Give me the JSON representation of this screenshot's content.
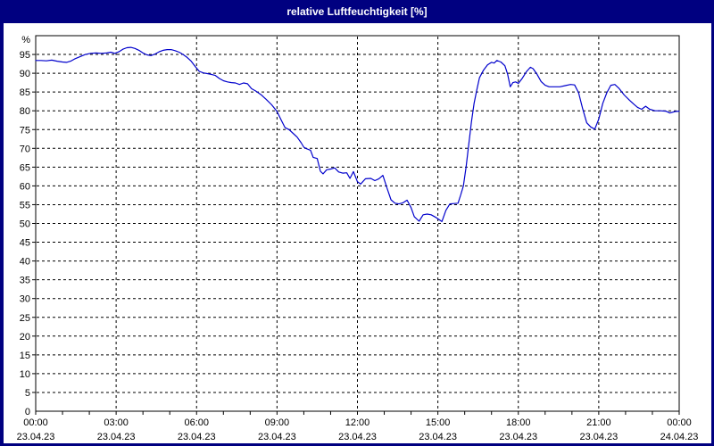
{
  "window": {
    "title": "relative Luftfeuchtigkeit [%]"
  },
  "colors": {
    "title_bar": "#000080",
    "window_border": "#000080",
    "title_text": "#ffffff",
    "plot_background": "#ffffff",
    "plot_line": "#0000cc",
    "grid": "#000000",
    "axis": "#000000",
    "label_text": "#000000"
  },
  "chart_data": {
    "type": "line",
    "title": "relative Luftfeuchtigkeit [%]",
    "ylabel": "%",
    "xlabel": "",
    "ylim": [
      0,
      100
    ],
    "grid": "dashed",
    "legend_position": "none",
    "y_unit_label": "%",
    "ytick_values": [
      0,
      5,
      10,
      15,
      20,
      25,
      30,
      35,
      40,
      45,
      50,
      55,
      60,
      65,
      70,
      75,
      80,
      85,
      90,
      95
    ],
    "ytick_labels": [
      "0",
      "5",
      "10",
      "15",
      "20",
      "25",
      "30",
      "35",
      "40",
      "45",
      "50",
      "55",
      "60",
      "65",
      "70",
      "75",
      "80",
      "85",
      "90",
      "95"
    ],
    "xlim_hours": [
      0,
      24
    ],
    "x_minor_tick_hours": 1,
    "x_major_gridline_hours": [
      3,
      6,
      9,
      12,
      15,
      18,
      21
    ],
    "xticks_major": [
      {
        "hour": 0,
        "time": "00:00",
        "date": "23.04.23"
      },
      {
        "hour": 3,
        "time": "03:00",
        "date": "23.04.23"
      },
      {
        "hour": 6,
        "time": "06:00",
        "date": "23.04.23"
      },
      {
        "hour": 9,
        "time": "09:00",
        "date": "23.04.23"
      },
      {
        "hour": 12,
        "time": "12:00",
        "date": "23.04.23"
      },
      {
        "hour": 15,
        "time": "15:00",
        "date": "23.04.23"
      },
      {
        "hour": 18,
        "time": "18:00",
        "date": "23.04.23"
      },
      {
        "hour": 21,
        "time": "21:00",
        "date": "23.04.23"
      },
      {
        "hour": 24,
        "time": "00:00",
        "date": "24.04.23"
      }
    ],
    "series": [
      {
        "name": "relative Luftfeuchtigkeit",
        "color": "#0000cc",
        "points": [
          [
            0.0,
            93.4
          ],
          [
            0.2,
            93.4
          ],
          [
            0.4,
            93.3
          ],
          [
            0.6,
            93.5
          ],
          [
            0.8,
            93.2
          ],
          [
            1.0,
            93.0
          ],
          [
            1.15,
            92.9
          ],
          [
            1.3,
            93.2
          ],
          [
            1.45,
            93.8
          ],
          [
            1.65,
            94.4
          ],
          [
            1.85,
            95.0
          ],
          [
            2.05,
            95.3
          ],
          [
            2.25,
            95.4
          ],
          [
            2.45,
            95.3
          ],
          [
            2.65,
            95.4
          ],
          [
            2.8,
            95.6
          ],
          [
            2.95,
            95.3
          ],
          [
            3.1,
            95.7
          ],
          [
            3.25,
            96.4
          ],
          [
            3.4,
            96.8
          ],
          [
            3.55,
            96.9
          ],
          [
            3.7,
            96.6
          ],
          [
            3.85,
            96.1
          ],
          [
            4.0,
            95.4
          ],
          [
            4.15,
            94.9
          ],
          [
            4.3,
            94.7
          ],
          [
            4.45,
            95.1
          ],
          [
            4.6,
            95.7
          ],
          [
            4.75,
            96.1
          ],
          [
            4.9,
            96.3
          ],
          [
            5.05,
            96.3
          ],
          [
            5.2,
            96.0
          ],
          [
            5.35,
            95.6
          ],
          [
            5.5,
            95.0
          ],
          [
            5.65,
            94.2
          ],
          [
            5.8,
            93.2
          ],
          [
            5.95,
            91.8
          ],
          [
            6.1,
            90.5
          ],
          [
            6.25,
            90.1
          ],
          [
            6.4,
            89.9
          ],
          [
            6.55,
            89.7
          ],
          [
            6.7,
            89.4
          ],
          [
            6.85,
            88.6
          ],
          [
            7.0,
            88.0
          ],
          [
            7.15,
            87.7
          ],
          [
            7.3,
            87.5
          ],
          [
            7.45,
            87.4
          ],
          [
            7.6,
            87.0
          ],
          [
            7.75,
            87.4
          ],
          [
            7.9,
            87.2
          ],
          [
            8.05,
            85.9
          ],
          [
            8.2,
            85.3
          ],
          [
            8.4,
            84.3
          ],
          [
            8.6,
            83.0
          ],
          [
            8.8,
            81.6
          ],
          [
            9.0,
            79.8
          ],
          [
            9.15,
            77.6
          ],
          [
            9.3,
            75.5
          ],
          [
            9.45,
            75.0
          ],
          [
            9.6,
            74.0
          ],
          [
            9.75,
            73.0
          ],
          [
            9.9,
            71.5
          ],
          [
            10.0,
            70.3
          ],
          [
            10.1,
            69.9
          ],
          [
            10.25,
            69.5
          ],
          [
            10.35,
            67.6
          ],
          [
            10.5,
            67.3
          ],
          [
            10.62,
            63.9
          ],
          [
            10.72,
            63.2
          ],
          [
            10.85,
            64.3
          ],
          [
            11.0,
            64.5
          ],
          [
            11.15,
            64.8
          ],
          [
            11.3,
            63.7
          ],
          [
            11.45,
            63.4
          ],
          [
            11.6,
            63.5
          ],
          [
            11.72,
            62.0
          ],
          [
            11.85,
            63.8
          ],
          [
            12.0,
            61.1
          ],
          [
            12.12,
            60.5
          ],
          [
            12.3,
            61.9
          ],
          [
            12.5,
            62.0
          ],
          [
            12.65,
            61.4
          ],
          [
            12.8,
            61.9
          ],
          [
            12.95,
            62.8
          ],
          [
            13.1,
            59.5
          ],
          [
            13.25,
            56.3
          ],
          [
            13.4,
            55.4
          ],
          [
            13.55,
            55.2
          ],
          [
            13.7,
            55.5
          ],
          [
            13.85,
            56.2
          ],
          [
            14.0,
            54.2
          ],
          [
            14.12,
            51.8
          ],
          [
            14.3,
            50.6
          ],
          [
            14.45,
            52.3
          ],
          [
            14.6,
            52.5
          ],
          [
            14.75,
            52.3
          ],
          [
            14.9,
            51.7
          ],
          [
            15.05,
            51.0
          ],
          [
            15.15,
            50.5
          ],
          [
            15.3,
            53.5
          ],
          [
            15.45,
            55.2
          ],
          [
            15.6,
            55.3
          ],
          [
            15.75,
            55.4
          ],
          [
            15.85,
            57.6
          ],
          [
            15.95,
            60.0
          ],
          [
            16.05,
            65.0
          ],
          [
            16.15,
            71.0
          ],
          [
            16.25,
            77.0
          ],
          [
            16.35,
            82.0
          ],
          [
            16.45,
            85.5
          ],
          [
            16.55,
            88.8
          ],
          [
            16.7,
            90.8
          ],
          [
            16.85,
            92.2
          ],
          [
            17.0,
            92.9
          ],
          [
            17.1,
            92.7
          ],
          [
            17.2,
            93.4
          ],
          [
            17.35,
            93.0
          ],
          [
            17.5,
            92.0
          ],
          [
            17.6,
            89.8
          ],
          [
            17.7,
            86.4
          ],
          [
            17.8,
            87.5
          ],
          [
            17.9,
            87.7
          ],
          [
            18.0,
            87.3
          ],
          [
            18.15,
            88.7
          ],
          [
            18.3,
            90.4
          ],
          [
            18.45,
            91.6
          ],
          [
            18.55,
            91.2
          ],
          [
            18.7,
            89.7
          ],
          [
            18.85,
            87.8
          ],
          [
            19.0,
            86.8
          ],
          [
            19.15,
            86.4
          ],
          [
            19.35,
            86.4
          ],
          [
            19.55,
            86.4
          ],
          [
            19.75,
            86.7
          ],
          [
            19.95,
            87.0
          ],
          [
            20.1,
            86.9
          ],
          [
            20.25,
            84.8
          ],
          [
            20.4,
            80.5
          ],
          [
            20.55,
            76.8
          ],
          [
            20.7,
            75.7
          ],
          [
            20.85,
            75.1
          ],
          [
            21.0,
            77.8
          ],
          [
            21.15,
            82.0
          ],
          [
            21.3,
            84.8
          ],
          [
            21.45,
            86.8
          ],
          [
            21.6,
            87.0
          ],
          [
            21.75,
            86.0
          ],
          [
            21.95,
            84.2
          ],
          [
            22.15,
            82.8
          ],
          [
            22.3,
            81.8
          ],
          [
            22.45,
            80.9
          ],
          [
            22.6,
            80.4
          ],
          [
            22.75,
            81.2
          ],
          [
            22.9,
            80.4
          ],
          [
            23.1,
            80.0
          ],
          [
            23.3,
            80.0
          ],
          [
            23.5,
            79.9
          ],
          [
            23.65,
            79.4
          ],
          [
            23.85,
            79.8
          ],
          [
            24.0,
            79.9
          ]
        ]
      }
    ]
  }
}
